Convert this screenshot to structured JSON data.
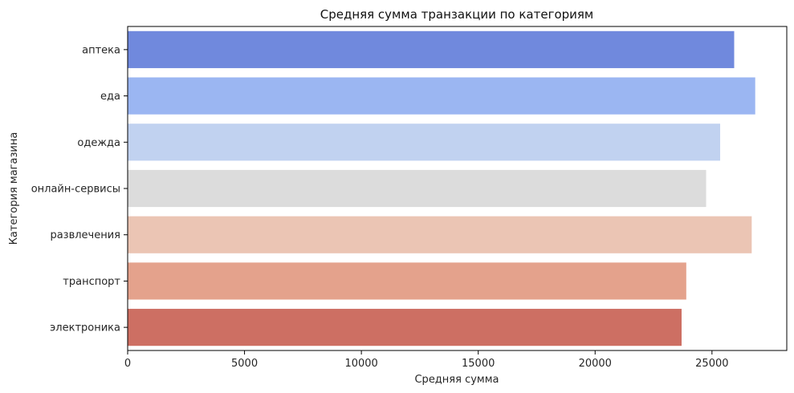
{
  "chart_data": {
    "type": "bar",
    "orientation": "horizontal",
    "title": "Средняя сумма транзакции по категориям",
    "xlabel": "Средняя сумма",
    "ylabel": "Категория магазина",
    "categories": [
      "аптека",
      "еда",
      "одежда",
      "онлайн-сервисы",
      "развлечения",
      "транспорт",
      "электроника"
    ],
    "values": [
      25950,
      26850,
      25350,
      24750,
      26700,
      23900,
      23700
    ],
    "colors": [
      "#7089dd",
      "#9bb6f2",
      "#c1d2f0",
      "#dcdcdc",
      "#ebc5b4",
      "#e4a28c",
      "#cd6f63"
    ],
    "xlim": [
      0,
      28200
    ],
    "xticks": [
      0,
      5000,
      10000,
      15000,
      20000,
      25000
    ],
    "grid": false,
    "legend": "none"
  }
}
